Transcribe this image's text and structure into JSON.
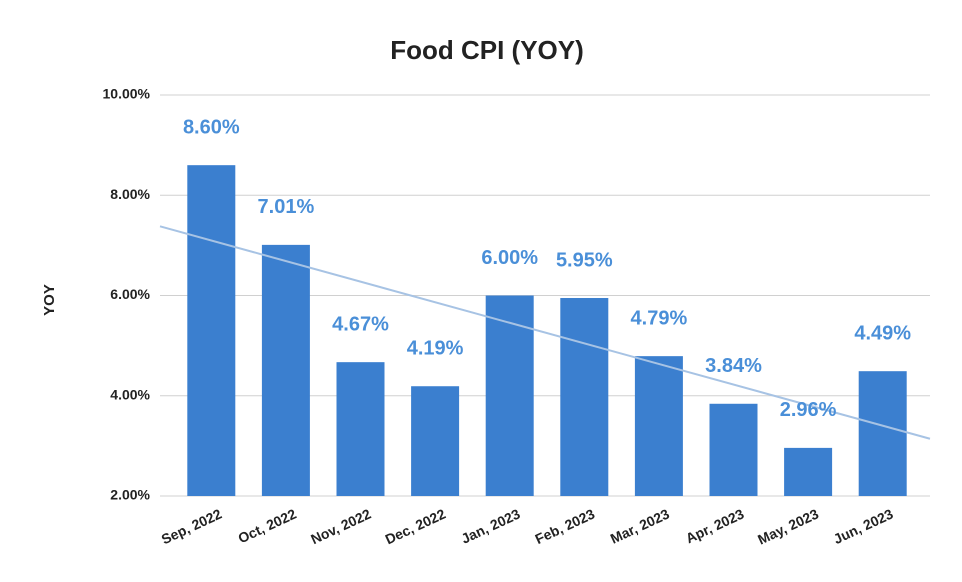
{
  "chart_data": {
    "type": "bar",
    "title": "Food CPI (YOY)",
    "y_label": "YOY",
    "categories": [
      "Sep, 2022",
      "Oct, 2022",
      "Nov, 2022",
      "Dec, 2022",
      "Jan, 2023",
      "Feb, 2023",
      "Mar, 2023",
      "Apr, 2023",
      "May, 2023",
      "Jun, 2023"
    ],
    "values": [
      8.6,
      7.01,
      4.67,
      4.19,
      6.0,
      5.95,
      4.79,
      3.84,
      2.96,
      4.49
    ],
    "value_labels": [
      "8.60%",
      "7.01%",
      "4.67%",
      "4.19%",
      "6.00%",
      "5.95%",
      "4.79%",
      "3.84%",
      "2.96%",
      "4.49%"
    ],
    "color": "#3b7fcf",
    "label_color": "#4a8fd8",
    "trendline": true,
    "trendline_color": "#a7c3e4",
    "ylim": [
      2,
      10
    ],
    "yticks": [
      {
        "value": 2,
        "label": "2.00%"
      },
      {
        "value": 4,
        "label": "4.00%"
      },
      {
        "value": 6,
        "label": "6.00%"
      },
      {
        "value": 8,
        "label": "8.00%"
      },
      {
        "value": 10,
        "label": "10.00%"
      }
    ],
    "grid": true
  }
}
